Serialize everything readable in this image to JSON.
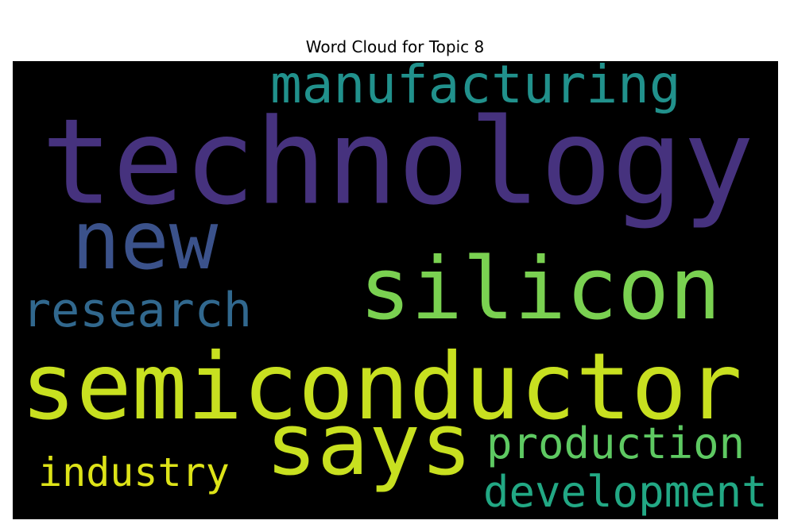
{
  "chart_data": {
    "type": "wordcloud",
    "title": "Word Cloud for Topic 8",
    "background": "#000000",
    "colormap": "viridis",
    "words": [
      {
        "text": "technology",
        "weight": 1.0,
        "color": "#46327e"
      },
      {
        "text": "semiconductor",
        "weight": 0.78,
        "color": "#c8e020"
      },
      {
        "text": "silicon",
        "weight": 0.73,
        "color": "#7ad151"
      },
      {
        "text": "says",
        "weight": 0.73,
        "color": "#c8e020"
      },
      {
        "text": "new",
        "weight": 0.69,
        "color": "#3b528b"
      },
      {
        "text": "manufacturing",
        "weight": 0.44,
        "color": "#21918c"
      },
      {
        "text": "research",
        "weight": 0.4,
        "color": "#31688e"
      },
      {
        "text": "production",
        "weight": 0.36,
        "color": "#5ec962"
      },
      {
        "text": "development",
        "weight": 0.36,
        "color": "#22a884"
      },
      {
        "text": "industry",
        "weight": 0.33,
        "color": "#dde318"
      }
    ]
  }
}
